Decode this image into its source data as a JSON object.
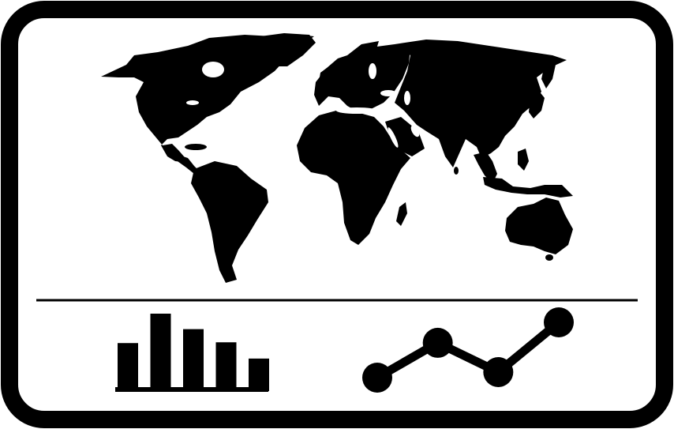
{
  "icon": {
    "name": "world-map-dashboard-icon",
    "foreground_color": "#000000",
    "background_color": "#ffffff"
  },
  "map": {
    "icon_name": "world-map-icon",
    "continents": [
      "north-america",
      "south-america",
      "europe",
      "africa",
      "asia",
      "australia"
    ]
  },
  "bar_chart": {
    "icon_name": "bar-chart-icon",
    "values": [
      0.62,
      1.0,
      0.8,
      0.63,
      0.42
    ]
  },
  "line_chart": {
    "icon_name": "line-chart-icon",
    "values": [
      0.0,
      0.63,
      0.1,
      1.0
    ]
  }
}
